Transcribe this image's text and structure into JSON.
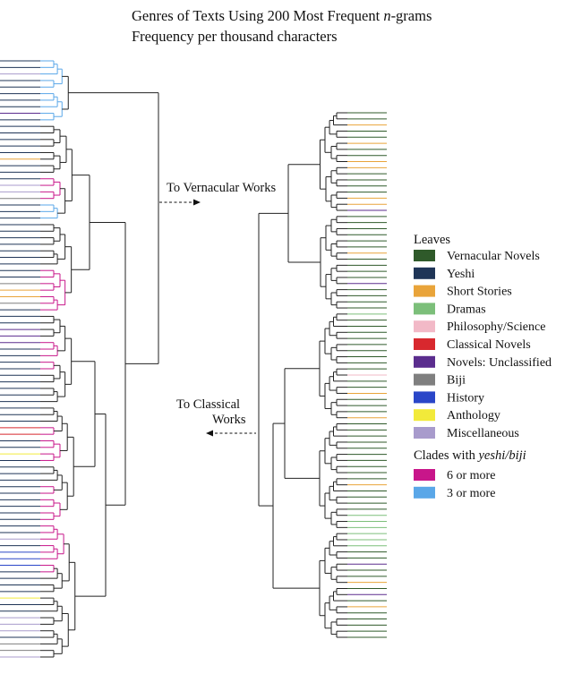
{
  "title": {
    "line1_prefix": "Genres of Texts Using 200 Most Frequent ",
    "line1_italic": "n",
    "line1_suffix": "-grams",
    "line2": "Frequency per thousand characters"
  },
  "arrows": {
    "vernacular": "To Vernacular Works",
    "classical_line1": "To Classical",
    "classical_line2": "Works"
  },
  "legend": {
    "leaves_title": "Leaves",
    "leaves": [
      {
        "label": "Vernacular Novels",
        "color": "#2f5a2a"
      },
      {
        "label": "Yeshi",
        "color": "#1f3557"
      },
      {
        "label": "Short Stories",
        "color": "#e9a43a"
      },
      {
        "label": "Dramas",
        "color": "#7cbf7a"
      },
      {
        "label": "Philosophy/Science",
        "color": "#f2b9c7"
      },
      {
        "label": "Classical Novels",
        "color": "#d8282e"
      },
      {
        "label": "Novels: Unclassified",
        "color": "#5b2d8e"
      },
      {
        "label": "Biji",
        "color": "#7f7f7f"
      },
      {
        "label": "History",
        "color": "#2a46c8"
      },
      {
        "label": "Anthology",
        "color": "#f2ea3a"
      },
      {
        "label": "Miscellaneous",
        "color": "#a89bcc"
      }
    ],
    "clades_title_prefix": "Clades with ",
    "clades_title_italic": "yeshi/biji",
    "clades": [
      {
        "label": "6 or more",
        "color": "#c8168a"
      },
      {
        "label": "3 or more",
        "color": "#5aa7e8"
      }
    ]
  },
  "left_tree": {
    "leaf_genres": [
      "yeshi",
      "yeshi",
      "misc",
      "yeshi",
      "yeshi",
      "yeshi",
      "yeshi",
      "yeshi",
      "novels",
      "yeshi",
      "yeshi",
      "yeshi",
      "yeshi",
      "yeshi",
      "yeshi",
      "short",
      "yeshi",
      "yeshi",
      "yeshi",
      "misc",
      "misc",
      "biji",
      "yeshi",
      "yeshi",
      "yeshi",
      "yeshi",
      "yeshi",
      "yeshi",
      "yeshi",
      "yeshi",
      "yeshi",
      "yeshi",
      "yeshi",
      "yeshi",
      "biji",
      "short",
      "short",
      "biji",
      "yeshi",
      "yeshi",
      "yeshi",
      "novels",
      "novels",
      "novels",
      "yeshi",
      "yeshi",
      "yeshi",
      "yeshi",
      "yeshi",
      "yeshi",
      "yeshi",
      "yeshi",
      "yeshi",
      "yeshi",
      "yeshi",
      "yeshi",
      "classical",
      "classical",
      "yeshi",
      "yeshi",
      "anthology",
      "yeshi",
      "yeshi",
      "yeshi",
      "yeshi",
      "yeshi",
      "yeshi",
      "yeshi",
      "yeshi",
      "yeshi",
      "yeshi",
      "yeshi",
      "yeshi",
      "misc",
      "yeshi",
      "history",
      "history",
      "history",
      "yeshi",
      "yeshi",
      "yeshi",
      "yeshi",
      "anthology",
      "yeshi",
      "yeshi",
      "misc",
      "misc",
      "misc",
      "yeshi",
      "biji",
      "biji",
      "misc"
    ]
  },
  "right_tree": {
    "leaf_genres": [
      "vern",
      "vern",
      "short",
      "vern",
      "vern",
      "short",
      "vern",
      "vern",
      "short",
      "short",
      "vern",
      "vern",
      "vern",
      "vern",
      "short",
      "short",
      "novels",
      "vern",
      "vern",
      "vern",
      "vern",
      "vern",
      "vern",
      "short",
      "vern",
      "vern",
      "vern",
      "vern",
      "novels",
      "vern",
      "vern",
      "vern",
      "vern",
      "drama",
      "vern",
      "vern",
      "vern",
      "vern",
      "vern",
      "vern",
      "vern",
      "vern",
      "vern",
      "philo",
      "vern",
      "vern",
      "short",
      "vern",
      "vern",
      "vern",
      "short",
      "vern",
      "vern",
      "vern",
      "vern",
      "vern",
      "vern",
      "vern",
      "vern",
      "vern",
      "vern",
      "short",
      "vern",
      "vern",
      "vern",
      "vern",
      "drama",
      "drama",
      "drama",
      "drama",
      "drama",
      "drama",
      "vern",
      "vern",
      "novels",
      "vern",
      "vern",
      "short",
      "vern",
      "novels",
      "vern",
      "short",
      "vern",
      "vern",
      "vern",
      "vern",
      "vern"
    ]
  }
}
